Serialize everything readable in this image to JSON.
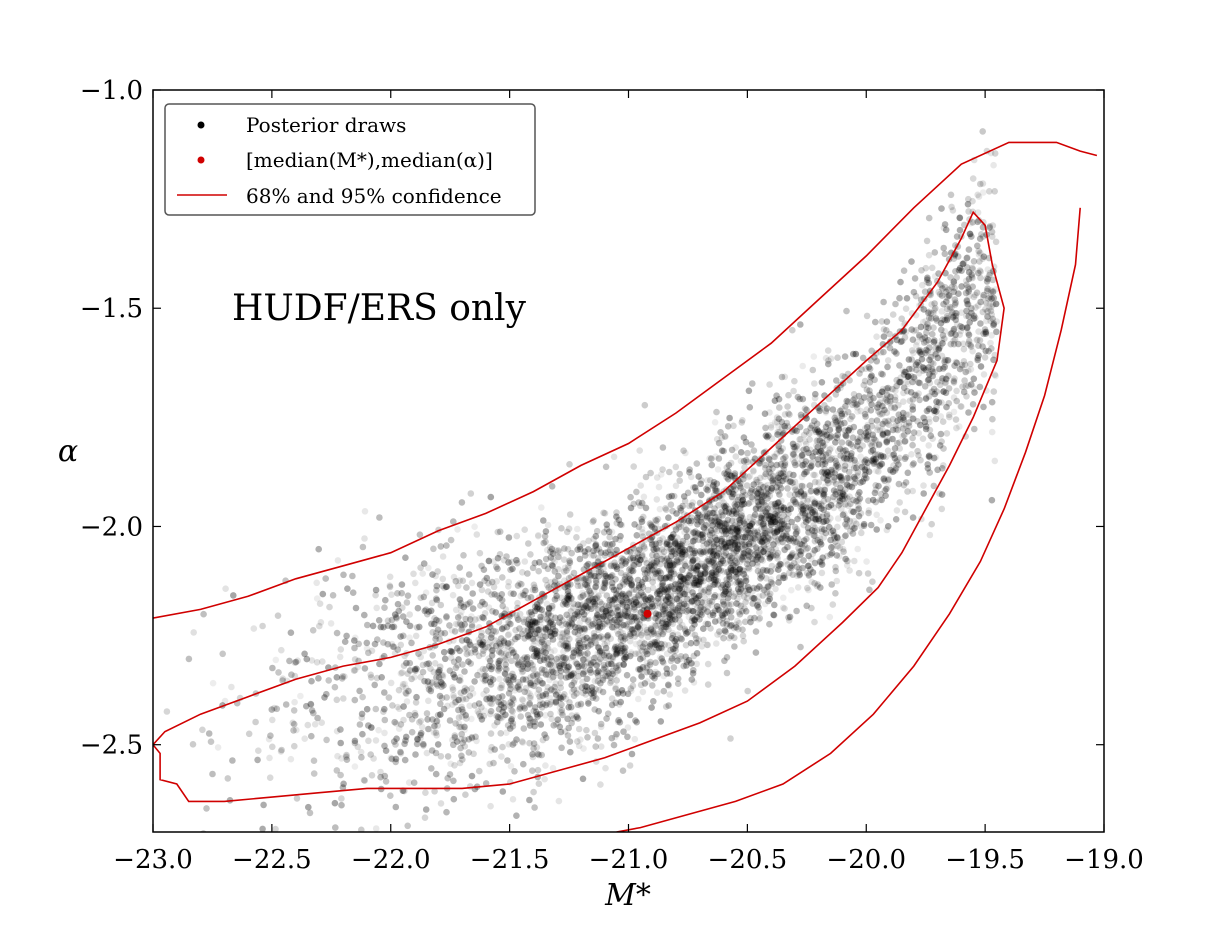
{
  "chart_data": {
    "type": "scatter",
    "title": "",
    "xlabel": "M*",
    "ylabel": "α",
    "xlim": [
      -23.0,
      -19.0
    ],
    "ylim": [
      -2.7,
      -1.0
    ],
    "xticks": [
      -23.0,
      -22.5,
      -22.0,
      -21.5,
      -21.0,
      -20.5,
      -20.0,
      -19.5,
      -19.0
    ],
    "xtick_labels": [
      "−23.0",
      "−22.5",
      "−22.0",
      "−21.5",
      "−21.0",
      "−20.5",
      "−20.0",
      "−19.5",
      "−19.0"
    ],
    "yticks": [
      -2.5,
      -2.0,
      -1.5,
      -1.0
    ],
    "ytick_labels": [
      "−2.5",
      "−2.0",
      "−1.5",
      "−1.0"
    ],
    "grid": false,
    "legend_position": "top-left",
    "annotation": "HUDF/ERS only",
    "legend": [
      {
        "label": "Posterior draws",
        "kind": "marker",
        "color": "#000000"
      },
      {
        "label": "[median(M*),median(α)]",
        "kind": "marker",
        "color": "#d00000"
      },
      {
        "label": "68% and 95% confidence",
        "kind": "line",
        "color": "#d00000"
      }
    ],
    "point_color": "#000000",
    "median_point": {
      "x": -20.92,
      "y": -2.2,
      "color": "#d00000"
    },
    "posterior_ridge": [
      [
        -23.0,
        -2.48
      ],
      [
        -22.5,
        -2.42
      ],
      [
        -22.0,
        -2.36
      ],
      [
        -21.5,
        -2.3
      ],
      [
        -21.0,
        -2.2
      ],
      [
        -20.5,
        -2.02
      ],
      [
        -20.0,
        -1.82
      ],
      [
        -19.5,
        -1.45
      ]
    ],
    "contours": [
      {
        "name": "68% confidence",
        "color": "#d00000",
        "points": [
          [
            -23.0,
            -2.5
          ],
          [
            -22.95,
            -2.47
          ],
          [
            -22.8,
            -2.43
          ],
          [
            -22.6,
            -2.39
          ],
          [
            -22.4,
            -2.35
          ],
          [
            -22.2,
            -2.32
          ],
          [
            -22.0,
            -2.3
          ],
          [
            -21.8,
            -2.27
          ],
          [
            -21.6,
            -2.23
          ],
          [
            -21.4,
            -2.17
          ],
          [
            -21.2,
            -2.11
          ],
          [
            -21.0,
            -2.05
          ],
          [
            -20.8,
            -1.99
          ],
          [
            -20.6,
            -1.92
          ],
          [
            -20.4,
            -1.82
          ],
          [
            -20.2,
            -1.72
          ],
          [
            -20.0,
            -1.62
          ],
          [
            -19.85,
            -1.55
          ],
          [
            -19.7,
            -1.44
          ],
          [
            -19.6,
            -1.34
          ],
          [
            -19.55,
            -1.28
          ],
          [
            -19.5,
            -1.31
          ],
          [
            -19.47,
            -1.4
          ],
          [
            -19.42,
            -1.5
          ],
          [
            -19.45,
            -1.62
          ],
          [
            -19.55,
            -1.75
          ],
          [
            -19.65,
            -1.86
          ],
          [
            -19.75,
            -1.96
          ],
          [
            -19.85,
            -2.06
          ],
          [
            -19.95,
            -2.14
          ],
          [
            -20.1,
            -2.22
          ],
          [
            -20.3,
            -2.32
          ],
          [
            -20.5,
            -2.4
          ],
          [
            -20.7,
            -2.45
          ],
          [
            -20.9,
            -2.49
          ],
          [
            -21.1,
            -2.53
          ],
          [
            -21.3,
            -2.56
          ],
          [
            -21.5,
            -2.59
          ],
          [
            -21.7,
            -2.6
          ],
          [
            -21.9,
            -2.6
          ],
          [
            -22.1,
            -2.6
          ],
          [
            -22.3,
            -2.61
          ],
          [
            -22.5,
            -2.62
          ],
          [
            -22.7,
            -2.63
          ],
          [
            -22.85,
            -2.63
          ],
          [
            -22.9,
            -2.59
          ],
          [
            -22.97,
            -2.58
          ],
          [
            -22.97,
            -2.52
          ],
          [
            -23.0,
            -2.5
          ]
        ]
      },
      {
        "name": "95% confidence upper",
        "color": "#d00000",
        "points": [
          [
            -23.0,
            -2.21
          ],
          [
            -22.8,
            -2.19
          ],
          [
            -22.6,
            -2.16
          ],
          [
            -22.4,
            -2.12
          ],
          [
            -22.2,
            -2.09
          ],
          [
            -22.0,
            -2.06
          ],
          [
            -21.8,
            -2.01
          ],
          [
            -21.6,
            -1.97
          ],
          [
            -21.4,
            -1.92
          ],
          [
            -21.2,
            -1.86
          ],
          [
            -21.0,
            -1.81
          ],
          [
            -20.8,
            -1.74
          ],
          [
            -20.6,
            -1.66
          ],
          [
            -20.4,
            -1.58
          ],
          [
            -20.2,
            -1.48
          ],
          [
            -20.0,
            -1.38
          ],
          [
            -19.8,
            -1.27
          ],
          [
            -19.6,
            -1.17
          ],
          [
            -19.4,
            -1.12
          ],
          [
            -19.2,
            -1.12
          ],
          [
            -19.1,
            -1.14
          ],
          [
            -19.03,
            -1.15
          ]
        ]
      },
      {
        "name": "95% confidence lower",
        "color": "#d00000",
        "points": [
          [
            -19.1,
            -1.27
          ],
          [
            -19.12,
            -1.4
          ],
          [
            -19.18,
            -1.55
          ],
          [
            -19.25,
            -1.7
          ],
          [
            -19.33,
            -1.83
          ],
          [
            -19.42,
            -1.96
          ],
          [
            -19.52,
            -2.08
          ],
          [
            -19.65,
            -2.2
          ],
          [
            -19.8,
            -2.32
          ],
          [
            -19.97,
            -2.43
          ],
          [
            -20.15,
            -2.52
          ],
          [
            -20.35,
            -2.59
          ],
          [
            -20.55,
            -2.63
          ],
          [
            -20.75,
            -2.66
          ],
          [
            -20.95,
            -2.69
          ],
          [
            -21.05,
            -2.7
          ]
        ]
      }
    ]
  }
}
